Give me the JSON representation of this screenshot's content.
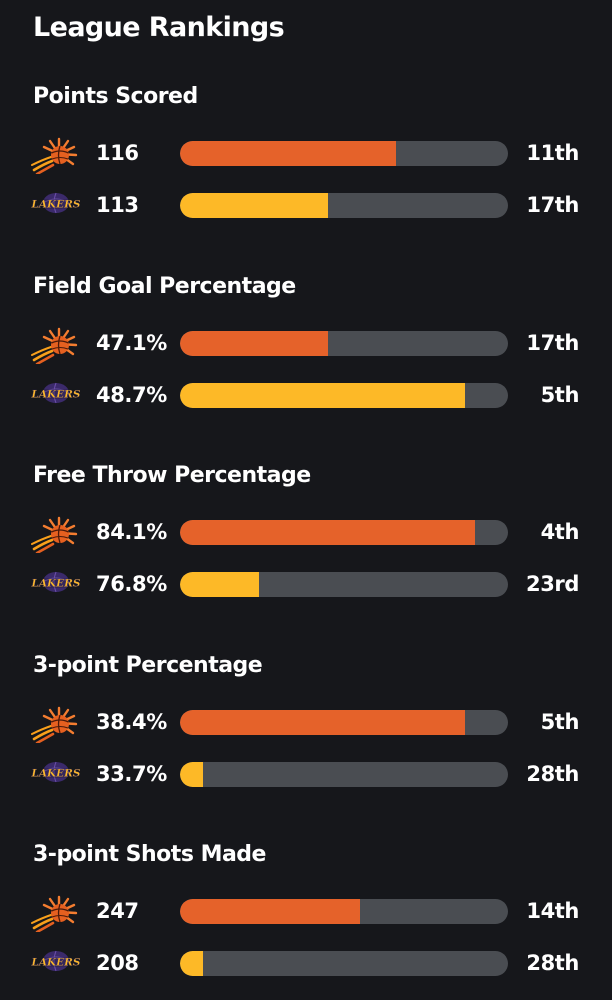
{
  "title": "League Rankings",
  "colors": {
    "background": "#16171b",
    "track": "#4a4d52",
    "suns_bar": "#e5622a",
    "lakers_bar": "#fdb927"
  },
  "teams": {
    "suns": {
      "logo_icon": "phoenix-suns-logo-icon"
    },
    "lakers": {
      "logo_icon": "los-angeles-lakers-logo-icon",
      "logo_text": "LAKERS"
    }
  },
  "sections": [
    {
      "title": "Points Scored",
      "rows": [
        {
          "team": "suns",
          "value": "116",
          "rank": "11th",
          "fill": 0.66
        },
        {
          "team": "lakers",
          "value": "113",
          "rank": "17th",
          "fill": 0.45
        }
      ]
    },
    {
      "title": "Field Goal Percentage",
      "rows": [
        {
          "team": "suns",
          "value": "47.1%",
          "rank": "17th",
          "fill": 0.45
        },
        {
          "team": "lakers",
          "value": "48.7%",
          "rank": "5th",
          "fill": 0.87
        }
      ]
    },
    {
      "title": "Free Throw Percentage",
      "rows": [
        {
          "team": "suns",
          "value": "84.1%",
          "rank": "4th",
          "fill": 0.9
        },
        {
          "team": "lakers",
          "value": "76.8%",
          "rank": "23rd",
          "fill": 0.24
        }
      ]
    },
    {
      "title": "3-point Percentage",
      "rows": [
        {
          "team": "suns",
          "value": "38.4%",
          "rank": "5th",
          "fill": 0.87
        },
        {
          "team": "lakers",
          "value": "33.7%",
          "rank": "28th",
          "fill": 0.07
        }
      ]
    },
    {
      "title": "3-point Shots Made",
      "rows": [
        {
          "team": "suns",
          "value": "247",
          "rank": "14th",
          "fill": 0.55
        },
        {
          "team": "lakers",
          "value": "208",
          "rank": "28th",
          "fill": 0.07
        }
      ]
    }
  ]
}
